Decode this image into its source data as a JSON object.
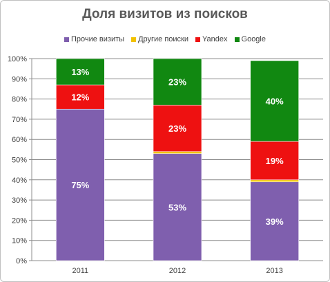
{
  "chart_data": {
    "type": "bar",
    "stacked": true,
    "title": "Доля визитов из поисков",
    "categories": [
      "2011",
      "2012",
      "2013"
    ],
    "series": [
      {
        "name": "Прочие визиты",
        "color": "#7f5fae",
        "values": [
          75,
          53,
          39
        ],
        "labels": [
          "75%",
          "53%",
          "39%"
        ]
      },
      {
        "name": "Другие поиски",
        "color": "#f2c200",
        "values": [
          0,
          1,
          1
        ],
        "labels": [
          "",
          "",
          ""
        ]
      },
      {
        "name": "Yandex",
        "color": "#ee1111",
        "values": [
          12,
          23,
          19
        ],
        "labels": [
          "12%",
          "23%",
          "19%"
        ]
      },
      {
        "name": "Google",
        "color": "#118811",
        "values": [
          13,
          23,
          40
        ],
        "labels": [
          "13%",
          "23%",
          "40%"
        ]
      }
    ],
    "ylim": [
      0,
      100
    ],
    "yticks": [
      "0%",
      "10%",
      "20%",
      "30%",
      "40%",
      "50%",
      "60%",
      "70%",
      "80%",
      "90%",
      "100%"
    ],
    "grid": true,
    "legend": "top"
  }
}
